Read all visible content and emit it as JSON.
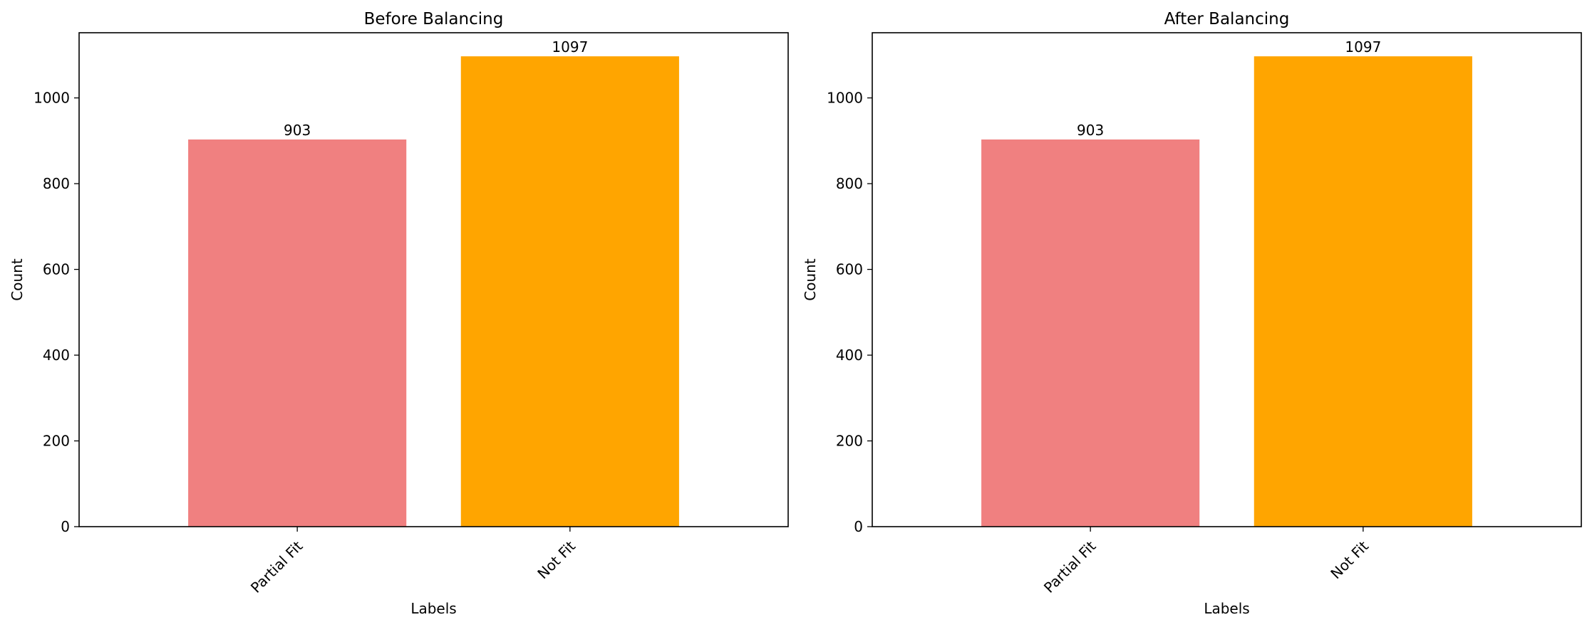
{
  "chart_data": [
    {
      "type": "bar",
      "title": "Before Balancing",
      "xlabel": "Labels",
      "ylabel": "Count",
      "categories": [
        "Partial Fit",
        "Not Fit"
      ],
      "values": [
        903,
        1097
      ],
      "data_labels": [
        "903",
        "1097"
      ],
      "colors": [
        "#f08080",
        "#ffa500"
      ],
      "ylim": [
        0,
        1152
      ],
      "yticks": [
        0,
        200,
        400,
        600,
        800,
        1000
      ],
      "ytick_labels": [
        "0",
        "200",
        "400",
        "600",
        "800",
        "1000"
      ],
      "grid": false,
      "legend": "none"
    },
    {
      "type": "bar",
      "title": "After Balancing",
      "xlabel": "Labels",
      "ylabel": "Count",
      "categories": [
        "Partial Fit",
        "Not Fit"
      ],
      "values": [
        903,
        1097
      ],
      "data_labels": [
        "903",
        "1097"
      ],
      "colors": [
        "#f08080",
        "#ffa500"
      ],
      "ylim": [
        0,
        1152
      ],
      "yticks": [
        0,
        200,
        400,
        600,
        800,
        1000
      ],
      "ytick_labels": [
        "0",
        "200",
        "400",
        "600",
        "800",
        "1000"
      ],
      "grid": false,
      "legend": "none"
    }
  ]
}
